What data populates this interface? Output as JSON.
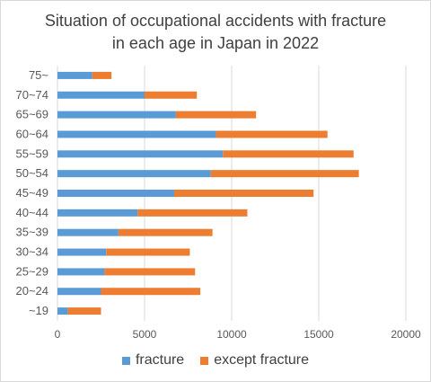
{
  "chart_data": {
    "type": "bar",
    "orientation": "horizontal",
    "stacked": true,
    "title_lines": [
      "Situation of occupational accidents with fracture",
      "in each age in Japan in 2022"
    ],
    "categories": [
      "~19",
      "20~24",
      "25~29",
      "30~34",
      "35~39",
      "40~44",
      "45~49",
      "50~54",
      "55~59",
      "60~64",
      "65~69",
      "70~74",
      "75~"
    ],
    "series": [
      {
        "name": "fracture",
        "color": "#5b9bd5",
        "values": [
          600,
          2500,
          2700,
          2800,
          3500,
          4600,
          6700,
          8800,
          9500,
          9100,
          6800,
          5000,
          2000
        ]
      },
      {
        "name": "except fracture",
        "color": "#ed7d31",
        "values": [
          1900,
          5700,
          5200,
          4800,
          5400,
          6300,
          8000,
          8500,
          7500,
          6400,
          4600,
          3000,
          1100
        ]
      }
    ],
    "xlim": [
      0,
      20000
    ],
    "xticks": [
      "0",
      "5000",
      "10000",
      "15000",
      "20000"
    ],
    "gridlines": true,
    "legend_position": "bottom"
  }
}
